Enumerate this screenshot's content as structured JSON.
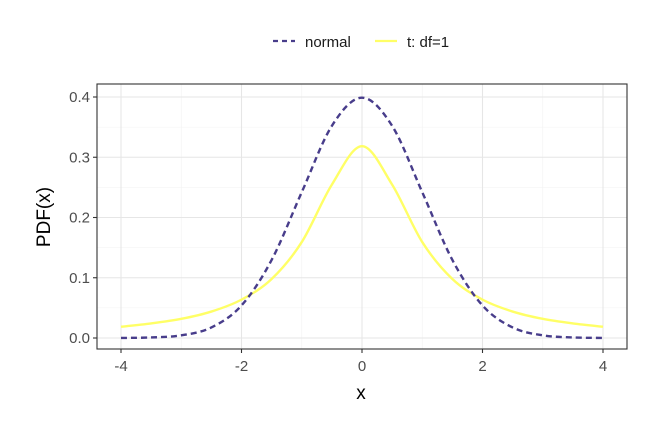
{
  "chart_data": {
    "type": "line",
    "title": "",
    "xlabel": "x",
    "ylabel": "PDF(x)",
    "xlim": [
      -4,
      4
    ],
    "ylim": [
      0,
      0.4
    ],
    "x_ticks": [
      -4,
      -2,
      0,
      2,
      4
    ],
    "y_ticks": [
      0.0,
      0.1,
      0.2,
      0.3,
      0.4
    ],
    "x_tick_labels": [
      "-4",
      "-2",
      "0",
      "2",
      "4"
    ],
    "y_tick_labels": [
      "0.0",
      "0.1",
      "0.2",
      "0.3",
      "0.4"
    ],
    "grid": true,
    "legend_position": "top",
    "x": [
      -4,
      -3.5,
      -3,
      -2.5,
      -2,
      -1.5,
      -1,
      -0.5,
      0,
      0.5,
      1,
      1.5,
      2,
      2.5,
      3,
      3.5,
      4
    ],
    "series": [
      {
        "name": "normal",
        "color": "#483D8B",
        "line_style": "dashed",
        "values": [
          0.0001,
          0.0009,
          0.0044,
          0.0175,
          0.054,
          0.1295,
          0.242,
          0.3521,
          0.3989,
          0.3521,
          0.242,
          0.1295,
          0.054,
          0.0175,
          0.0044,
          0.0009,
          0.0001
        ]
      },
      {
        "name": "t: df=1",
        "color": "#FFFF66",
        "line_style": "solid",
        "values": [
          0.0187,
          0.0242,
          0.0318,
          0.0439,
          0.0637,
          0.0979,
          0.1592,
          0.2546,
          0.3183,
          0.2546,
          0.1592,
          0.0979,
          0.0637,
          0.0439,
          0.0318,
          0.0242,
          0.0187
        ]
      }
    ]
  }
}
